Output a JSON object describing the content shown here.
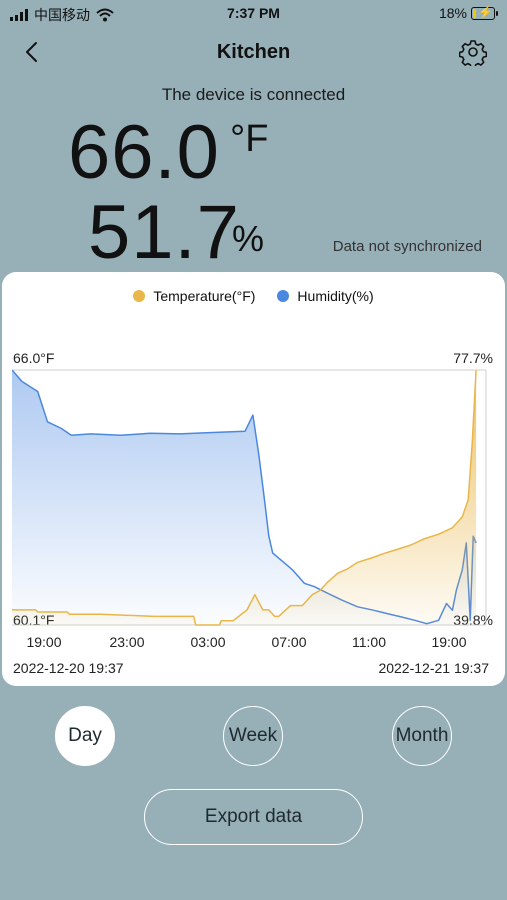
{
  "status": {
    "carrier": "中国移动",
    "time": "7:37 PM",
    "battery": "18%",
    "battery_level": 0.18
  },
  "nav": {
    "title": "Kitchen",
    "back_icon": "chevron-left-icon",
    "settings_icon": "gear-icon"
  },
  "device": {
    "status_text": "The device is connected",
    "temperature": "66.0",
    "temperature_unit": "°F",
    "humidity": "51.7",
    "humidity_unit": "%",
    "sync_status": "Data not synchronized"
  },
  "chart_data": {
    "type": "area",
    "legend": [
      {
        "name": "Temperature(°F)",
        "color": "#e8b649"
      },
      {
        "name": "Humidity(%)",
        "color": "#4a88e0"
      }
    ],
    "left_axis": {
      "max_label": "66.0°F",
      "min_label": "60.1°F",
      "range": [
        60.1,
        66.0
      ]
    },
    "right_axis": {
      "max_label": "77.7%",
      "min_label": "39.8%",
      "range": [
        39.8,
        77.7
      ]
    },
    "x_ticks": [
      "19:00",
      "23:00",
      "03:00",
      "07:00",
      "11:00",
      "19:00"
    ],
    "start_date": "2022-12-20 19:37",
    "end_date": "2022-12-21 19:37",
    "x_range_hours": [
      0,
      24
    ],
    "series": [
      {
        "name": "Temperature(°F)",
        "color": "#e8b649",
        "x": [
          0,
          1.2,
          1.3,
          2.8,
          2.9,
          4.5,
          7.2,
          9.2,
          9.3,
          10.5,
          10.6,
          11.2,
          11.9,
          12.3,
          12.7,
          13.0,
          13.3,
          13.5,
          14.1,
          14.7,
          15.2,
          15.6,
          16.0,
          16.5,
          17.0,
          17.5,
          18.2,
          18.8,
          19.5,
          20.2,
          20.9,
          21.6,
          22.3,
          22.8,
          23.1,
          23.3,
          23.5
        ],
        "y": [
          60.45,
          60.45,
          60.4,
          60.4,
          60.35,
          60.35,
          60.3,
          60.3,
          60.1,
          60.1,
          60.2,
          60.2,
          60.45,
          60.8,
          60.45,
          60.45,
          60.3,
          60.3,
          60.55,
          60.55,
          60.8,
          60.9,
          61.1,
          61.3,
          61.4,
          61.55,
          61.65,
          61.75,
          61.85,
          61.95,
          62.1,
          62.2,
          62.35,
          62.6,
          63.0,
          64.3,
          66.0
        ]
      },
      {
        "name": "Humidity(%)",
        "color": "#4a88e0",
        "x": [
          0,
          0.5,
          1.3,
          1.8,
          2.5,
          3.0,
          4.0,
          5.5,
          7.0,
          8.5,
          10.0,
          11.8,
          12.2,
          12.5,
          12.8,
          13.0,
          13.2,
          13.4,
          13.8,
          14.2,
          14.8,
          15.3,
          16.0,
          16.7,
          17.5,
          18.3,
          19.0,
          19.7,
          20.4,
          21.0,
          21.6,
          22.0,
          22.3,
          22.5,
          22.8,
          23.0,
          23.2,
          23.35,
          23.5
        ],
        "y": [
          77.7,
          76.0,
          74.5,
          70.0,
          69.0,
          68.0,
          68.2,
          68.0,
          68.3,
          68.2,
          68.4,
          68.6,
          71.0,
          65.0,
          58.0,
          53.0,
          50.5,
          50.0,
          49.0,
          48.0,
          46.0,
          45.5,
          44.5,
          43.5,
          42.5,
          42.0,
          41.5,
          41.0,
          40.5,
          40.0,
          40.5,
          43.0,
          42.0,
          45.0,
          48.0,
          52.0,
          40.5,
          53.0,
          52.0
        ]
      }
    ]
  },
  "range": {
    "day": "Day",
    "week": "Week",
    "month": "Month",
    "active": "day"
  },
  "export_label": "Export data"
}
